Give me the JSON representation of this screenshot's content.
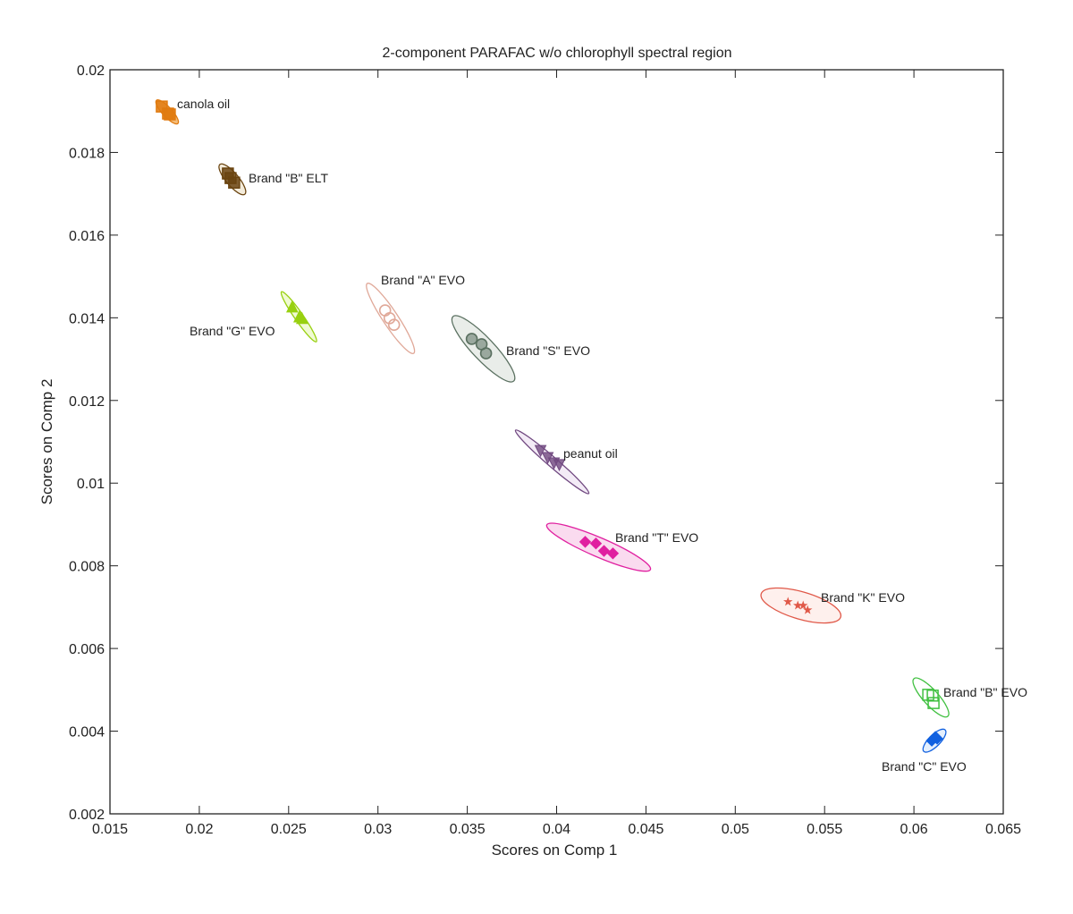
{
  "chart_data": {
    "type": "scatter",
    "title": "2-component PARAFAC w/o chlorophyll spectral  region",
    "xlabel": "Scores on Comp 1",
    "ylabel": "Scores on Comp 2",
    "xlim": [
      0.015,
      0.065
    ],
    "ylim": [
      0.002,
      0.02
    ],
    "xticks": [
      "0.015",
      "0.02",
      "0.025",
      "0.03",
      "0.035",
      "0.04",
      "0.045",
      "0.05",
      "0.055",
      "0.06",
      "0.065"
    ],
    "yticks": [
      "0.002",
      "0.004",
      "0.006",
      "0.008",
      "0.01",
      "0.012",
      "0.014",
      "0.016",
      "0.018",
      "0.02"
    ],
    "grid": false,
    "series": [
      {
        "name": "canola oil",
        "color": "#e07b10",
        "fill": "#f0a040",
        "marker": "square",
        "points": [
          [
            0.0179,
            0.01911
          ],
          [
            0.01825,
            0.01894
          ],
          [
            0.01835,
            0.01892
          ]
        ],
        "ellipse": {
          "p1": [
            0.0176,
            0.01926
          ],
          "p2": [
            0.0188,
            0.0187
          ],
          "minor_ratio": 0.3
        }
      },
      {
        "name": "Brand \"B\" ELT",
        "color": "#6a4410",
        "fill": "#f0e4cc",
        "marker": "square",
        "points": [
          [
            0.0216,
            0.01749
          ],
          [
            0.02175,
            0.01738
          ],
          [
            0.02195,
            0.01727
          ]
        ],
        "ellipse": {
          "p1": [
            0.02115,
            0.01771
          ],
          "p2": [
            0.02255,
            0.01699
          ],
          "minor_ratio": 0.32
        }
      },
      {
        "name": "Brand \"G\" EVO",
        "color": "#98d010",
        "fill": "#eaf8c0",
        "marker": "triangle",
        "points": [
          [
            0.0252,
            0.01427
          ],
          [
            0.0256,
            0.01403
          ],
          [
            0.02575,
            0.01399
          ]
        ],
        "ellipse": {
          "p1": [
            0.0246,
            0.01463
          ],
          "p2": [
            0.02655,
            0.01342
          ],
          "minor_ratio": 0.14
        }
      },
      {
        "name": "Brand \"A\" EVO",
        "color": "#e0a898",
        "fill": "none",
        "marker": "circle-open",
        "points": [
          [
            0.0304,
            0.01418
          ],
          [
            0.03065,
            0.01399
          ],
          [
            0.0309,
            0.01383
          ]
        ],
        "ellipse": {
          "p1": [
            0.0294,
            0.01483
          ],
          "p2": [
            0.032,
            0.01314
          ],
          "minor_ratio": 0.18
        }
      },
      {
        "name": "Brand \"S\" EVO",
        "color": "#5a7060",
        "fill": "#dfe6e0",
        "marker": "circle",
        "points": [
          [
            0.03525,
            0.01349
          ],
          [
            0.0358,
            0.01336
          ],
          [
            0.03605,
            0.01314
          ]
        ],
        "ellipse": {
          "p1": [
            0.0342,
            0.01403
          ],
          "p2": [
            0.0376,
            0.01247
          ],
          "minor_ratio": 0.25
        }
      },
      {
        "name": "peanut oil",
        "color": "#704880",
        "fill": "#eee2f2",
        "marker": "triangle-down",
        "points": [
          [
            0.0391,
            0.01078
          ],
          [
            0.0395,
            0.01061
          ],
          [
            0.03985,
            0.01048
          ],
          [
            0.04015,
            0.01044
          ]
        ],
        "ellipse": {
          "p1": [
            0.0377,
            0.01128
          ],
          "p2": [
            0.0418,
            0.00975
          ],
          "minor_ratio": 0.1
        }
      },
      {
        "name": "Brand \"T\" EVO",
        "color": "#e020a0",
        "fill": "#f8cce8",
        "marker": "diamond",
        "points": [
          [
            0.0416,
            0.00858
          ],
          [
            0.0422,
            0.00854
          ],
          [
            0.04265,
            0.00836
          ],
          [
            0.04315,
            0.0083
          ]
        ],
        "ellipse": {
          "p1": [
            0.03945,
            0.00899
          ],
          "p2": [
            0.04525,
            0.00791
          ],
          "minor_ratio": 0.17
        }
      },
      {
        "name": "Brand \"K\" EVO",
        "color": "#e05848",
        "fill": "#fdeae6",
        "marker": "star",
        "points": [
          [
            0.05295,
            0.00713
          ],
          [
            0.0535,
            0.00704
          ],
          [
            0.0538,
            0.00704
          ],
          [
            0.05405,
            0.00693
          ]
        ],
        "ellipse": {
          "p1": [
            0.05145,
            0.00732
          ],
          "p2": [
            0.0559,
            0.00676
          ],
          "minor_ratio": 0.33
        }
      },
      {
        "name": "Brand \"B\" EVO",
        "color": "#40c040",
        "fill": "none",
        "marker": "square-open",
        "points": [
          [
            0.0608,
            0.00488
          ],
          [
            0.06105,
            0.00486
          ],
          [
            0.0611,
            0.00468
          ]
        ],
        "ellipse": {
          "p1": [
            0.06,
            0.00527
          ],
          "p2": [
            0.0619,
            0.00436
          ],
          "minor_ratio": 0.3
        }
      },
      {
        "name": "Brand \"C\" EVO",
        "color": "#1060e0",
        "fill": "#d8e8fc",
        "marker": "diamond",
        "points": [
          [
            0.061,
            0.00377
          ],
          [
            0.0612,
            0.00386
          ],
          [
            0.0613,
            0.00382
          ]
        ],
        "ellipse": {
          "p1": [
            0.06055,
            0.00351
          ],
          "p2": [
            0.06175,
            0.00403
          ],
          "minor_ratio": 0.38
        }
      }
    ]
  }
}
